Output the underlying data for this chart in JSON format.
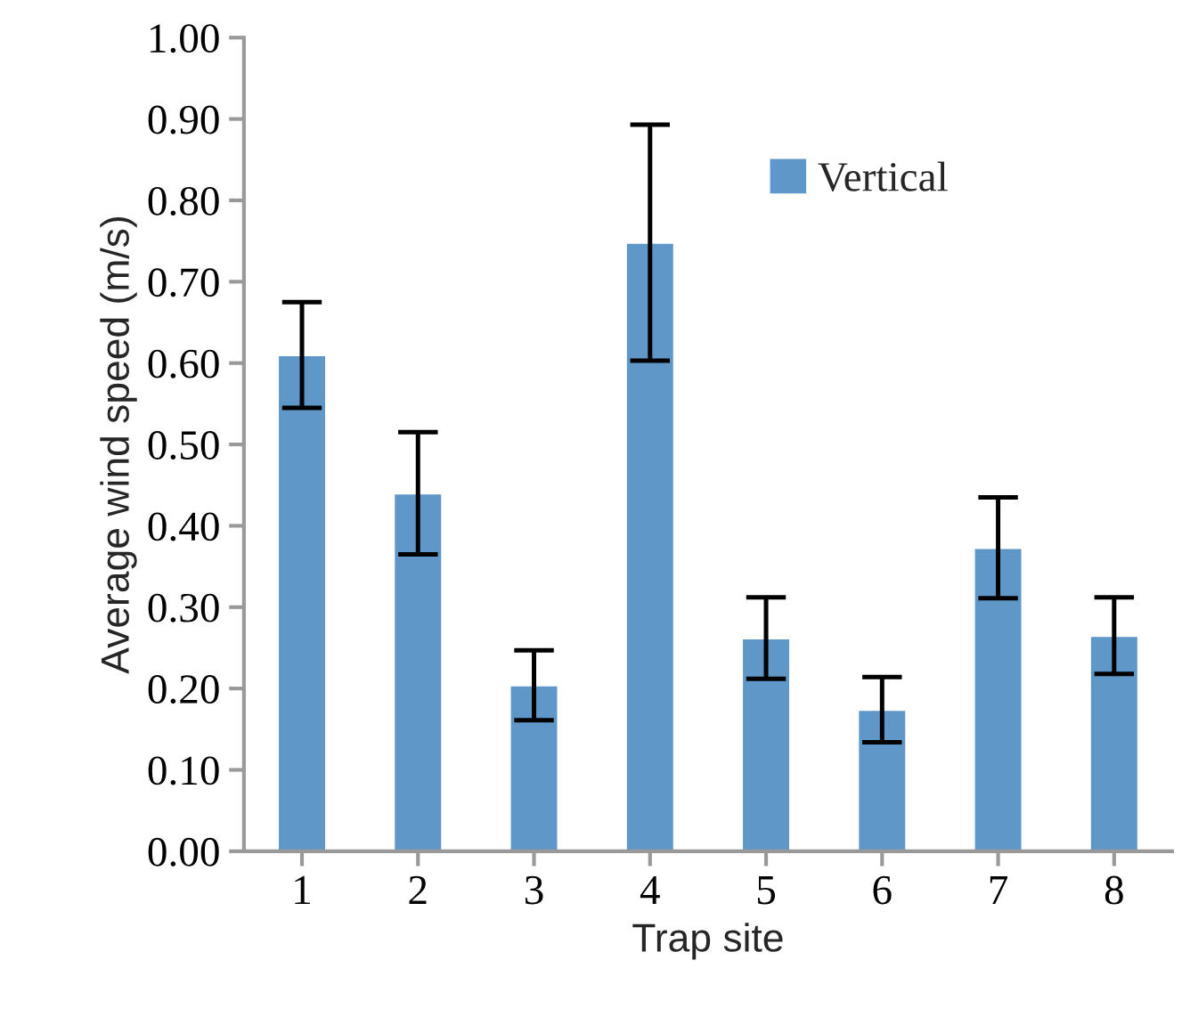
{
  "chart_data": {
    "type": "bar",
    "xlabel": "Trap site",
    "ylabel": "Average wind speed (m/s)",
    "categories": [
      "1",
      "2",
      "3",
      "4",
      "5",
      "6",
      "7",
      "8"
    ],
    "series": [
      {
        "name": "Vertical",
        "color": "#6097c9",
        "values": [
          0.61,
          0.44,
          0.204,
          0.748,
          0.262,
          0.174,
          0.373,
          0.265
        ],
        "errors": [
          0.065,
          0.075,
          0.043,
          0.145,
          0.05,
          0.04,
          0.062,
          0.047
        ]
      }
    ],
    "ylim": [
      0,
      1
    ],
    "yticks": [
      {
        "value": 0,
        "label": "0.00"
      },
      {
        "value": 0.1,
        "label": "0.10"
      },
      {
        "value": 0.2,
        "label": "0.20"
      },
      {
        "value": 0.3,
        "label": "0.30"
      },
      {
        "value": 0.4,
        "label": "0.40"
      },
      {
        "value": 0.5,
        "label": "0.50"
      },
      {
        "value": 0.6,
        "label": "0.60"
      },
      {
        "value": 0.7,
        "label": "0.70"
      },
      {
        "value": 0.8,
        "label": "0.80"
      },
      {
        "value": 0.9,
        "label": "0.90"
      },
      {
        "value": 1.0,
        "label": "1.00"
      }
    ],
    "legend": "top right",
    "grid": false
  }
}
